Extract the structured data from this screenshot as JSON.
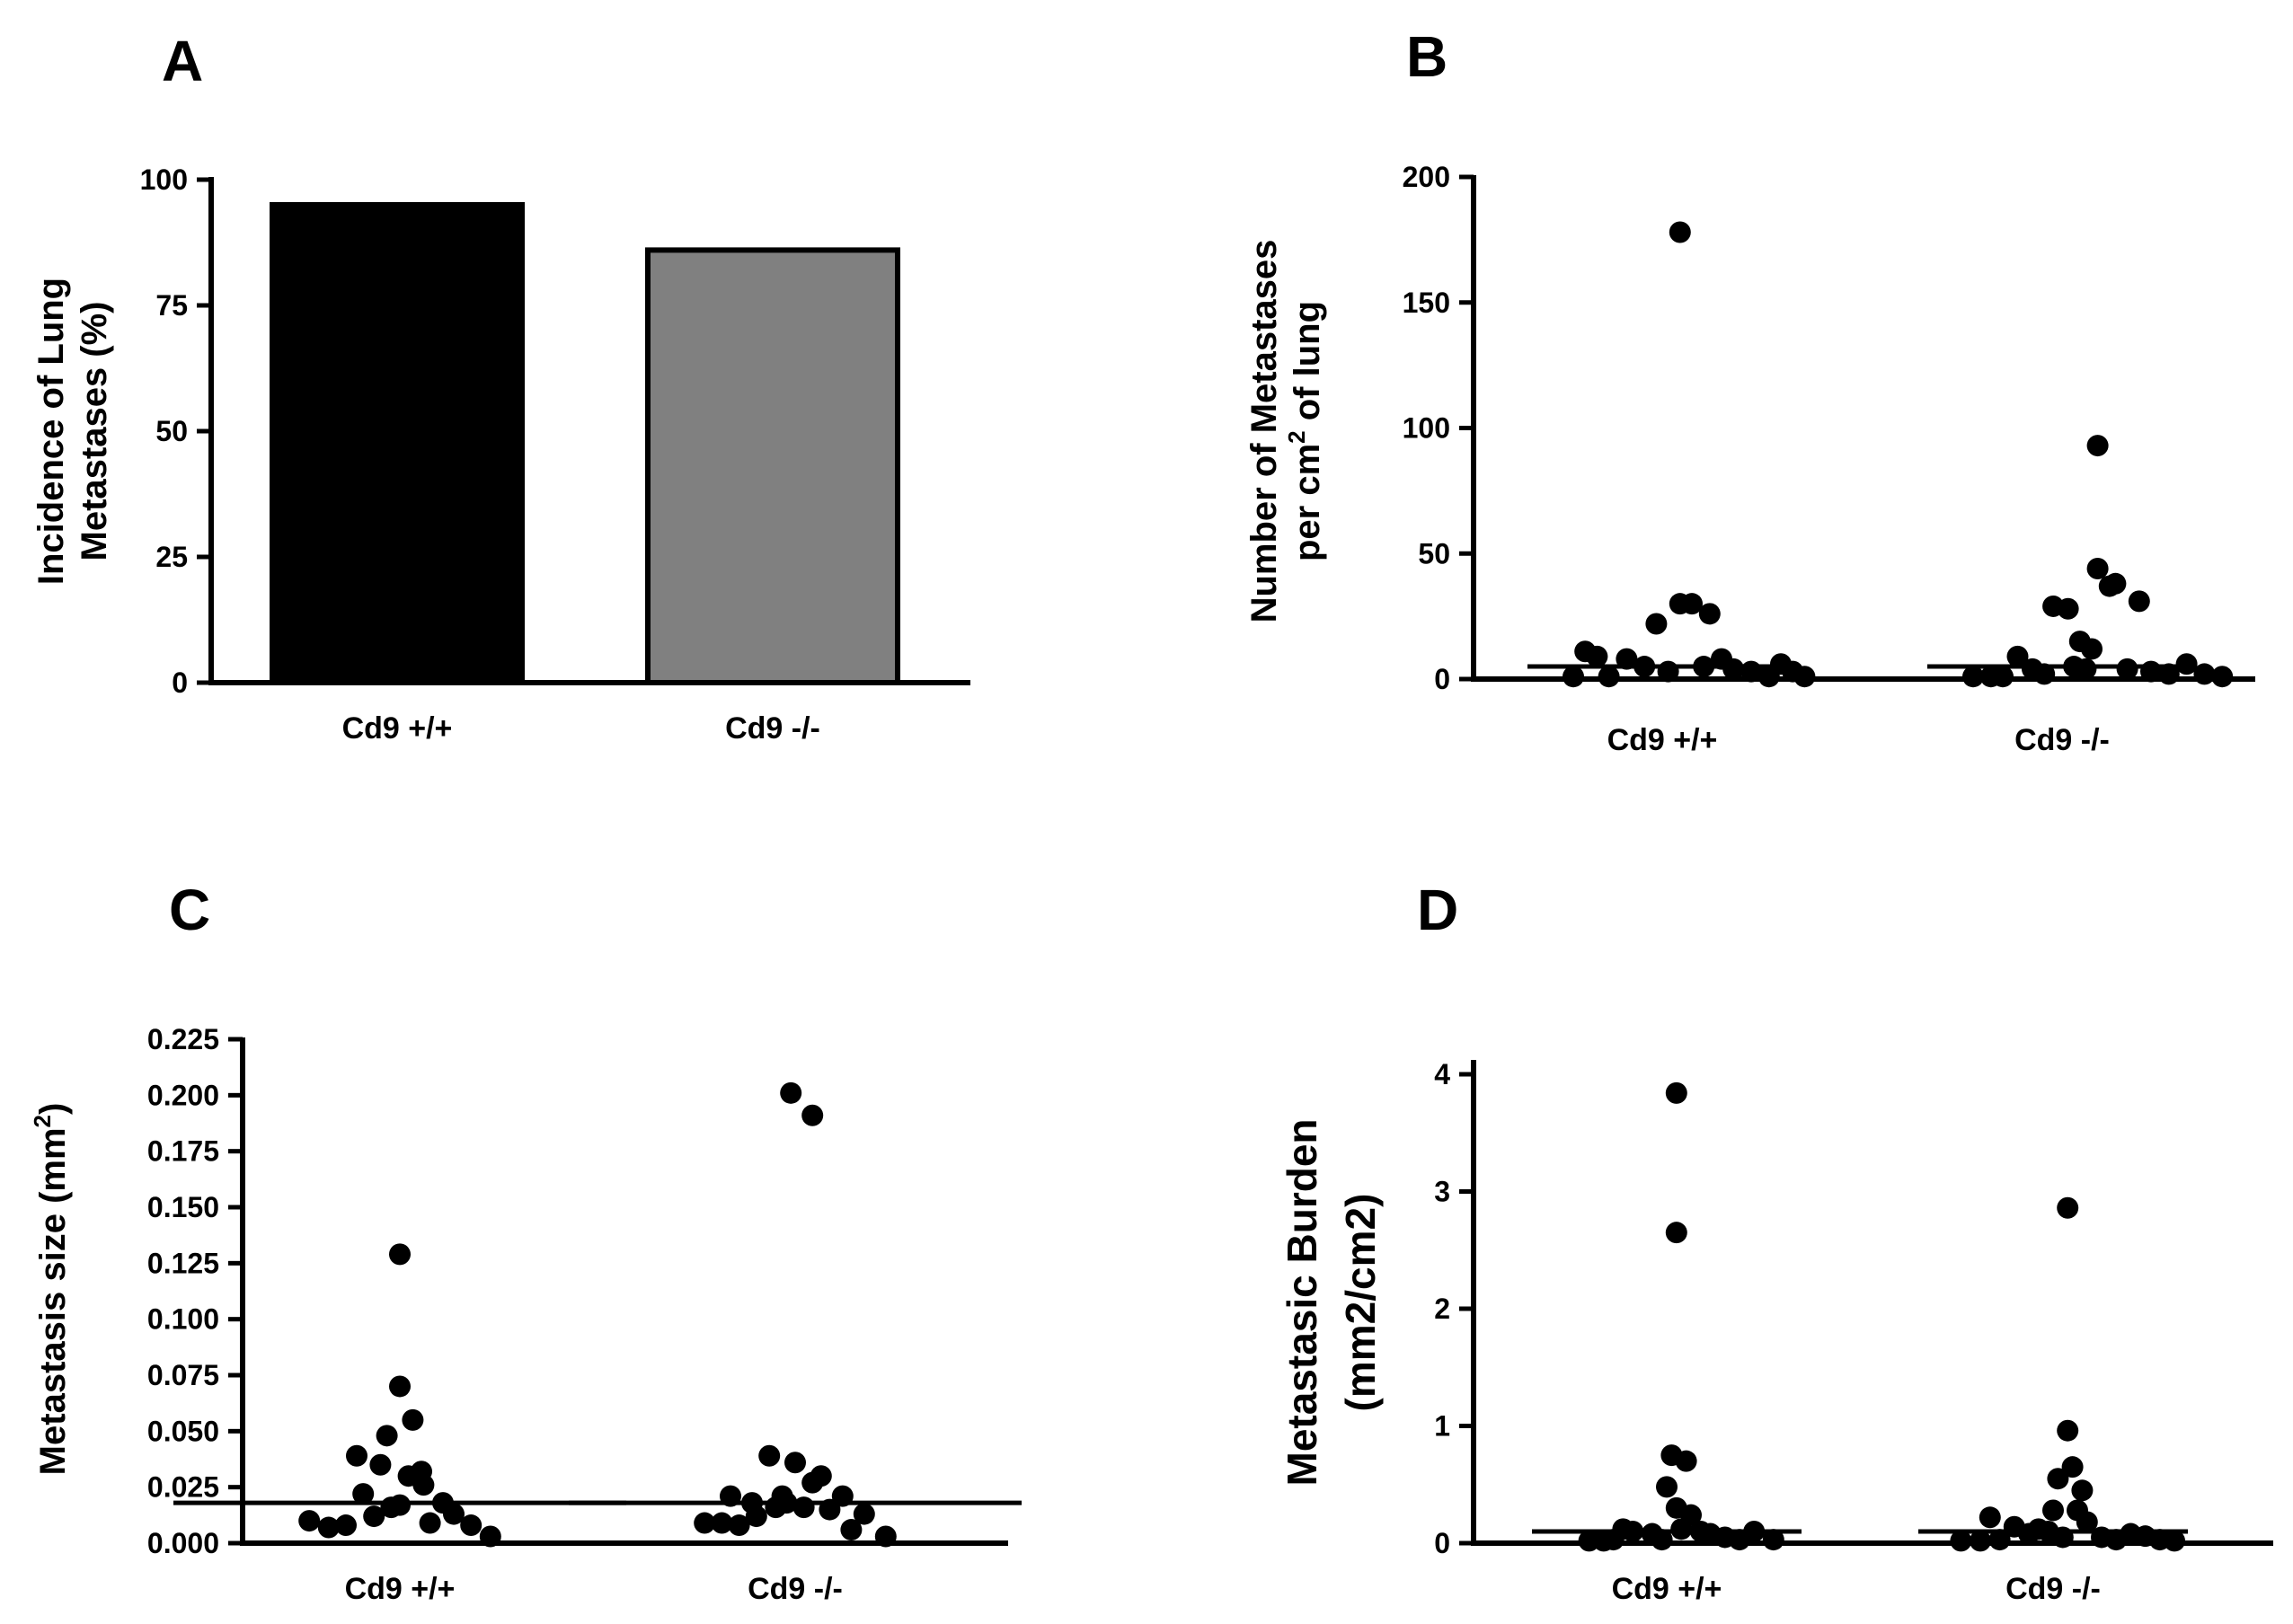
{
  "figure": {
    "panels": [
      "A",
      "B",
      "C",
      "D"
    ]
  },
  "chart_data": [
    {
      "id": "A",
      "type": "bar",
      "title": "",
      "categories": [
        "Cd9 +/+",
        "Cd9 -/-"
      ],
      "values": [
        95,
        86
      ],
      "colors": [
        "#000000",
        "#808080"
      ],
      "ylim": [
        0,
        100
      ],
      "yticks": [
        0,
        25,
        50,
        75,
        100
      ],
      "ylabel_lines": [
        "Incidence of Lung",
        "Metastases (%)"
      ]
    },
    {
      "id": "B",
      "type": "scatter",
      "title": "",
      "categories": [
        "Cd9 +/+",
        "Cd9 -/-"
      ],
      "ylim": [
        0,
        200
      ],
      "yticks": [
        0,
        50,
        100,
        150,
        200
      ],
      "ylabel_line1": "Number of Metastases",
      "ylabel_line2_pre": "per cm",
      "ylabel_line2_sup": "2",
      "ylabel_line2_post": " of lung",
      "medians": [
        5,
        5
      ],
      "series": [
        {
          "name": "Cd9 +/+",
          "points": [
            [
              -0.3,
              1
            ],
            [
              -0.26,
              11
            ],
            [
              -0.22,
              9
            ],
            [
              -0.18,
              1
            ],
            [
              -0.12,
              8
            ],
            [
              -0.06,
              5
            ],
            [
              -0.02,
              22
            ],
            [
              0.02,
              3
            ],
            [
              0.06,
              30
            ],
            [
              0.1,
              30
            ],
            [
              0.06,
              178
            ],
            [
              0.14,
              5
            ],
            [
              0.16,
              26
            ],
            [
              0.2,
              8
            ],
            [
              0.24,
              4
            ],
            [
              0.3,
              3
            ],
            [
              0.36,
              1
            ],
            [
              0.4,
              6
            ],
            [
              0.44,
              3
            ],
            [
              0.48,
              1
            ]
          ]
        },
        {
          "name": "Cd9 -/-",
          "points": [
            [
              -0.3,
              1
            ],
            [
              -0.24,
              1
            ],
            [
              -0.2,
              1
            ],
            [
              -0.15,
              9
            ],
            [
              -0.1,
              4
            ],
            [
              -0.06,
              2
            ],
            [
              -0.03,
              29
            ],
            [
              0.02,
              28
            ],
            [
              0.04,
              5
            ],
            [
              0.06,
              15
            ],
            [
              0.08,
              4
            ],
            [
              0.1,
              12
            ],
            [
              0.12,
              44
            ],
            [
              0.16,
              37
            ],
            [
              0.18,
              38
            ],
            [
              0.22,
              4
            ],
            [
              0.26,
              31
            ],
            [
              0.3,
              3
            ],
            [
              0.36,
              2
            ],
            [
              0.42,
              6
            ],
            [
              0.48,
              2
            ],
            [
              0.54,
              1
            ],
            [
              0.12,
              93
            ]
          ]
        }
      ]
    },
    {
      "id": "C",
      "type": "scatter",
      "title": "",
      "categories": [
        "Cd9 +/+",
        "Cd9 -/-"
      ],
      "ylim": [
        0,
        0.225
      ],
      "yticks": [
        "0.000",
        "0.025",
        "0.050",
        "0.075",
        "0.100",
        "0.125",
        "0.150",
        "0.175",
        "0.200",
        "0.225"
      ],
      "ylabel_pre": "Metastasis size (mm",
      "ylabel_sup": "2",
      "ylabel_post": ")",
      "medians": [
        0.018,
        0.018
      ],
      "series": [
        {
          "name": "Cd9 +/+",
          "points": [
            [
              -0.42,
              0.01
            ],
            [
              -0.33,
              0.007
            ],
            [
              -0.25,
              0.008
            ],
            [
              -0.2,
              0.039
            ],
            [
              -0.17,
              0.022
            ],
            [
              -0.12,
              0.012
            ],
            [
              -0.09,
              0.035
            ],
            [
              -0.06,
              0.048
            ],
            [
              -0.04,
              0.016
            ],
            [
              0.0,
              0.017
            ],
            [
              0.0,
              0.07
            ],
            [
              0.0,
              0.129
            ],
            [
              0.04,
              0.03
            ],
            [
              0.06,
              0.055
            ],
            [
              0.1,
              0.032
            ],
            [
              0.11,
              0.026
            ],
            [
              0.14,
              0.009
            ],
            [
              0.2,
              0.018
            ],
            [
              0.25,
              0.013
            ],
            [
              0.33,
              0.008
            ],
            [
              0.42,
              0.003
            ]
          ]
        },
        {
          "name": "Cd9 -/-",
          "points": [
            [
              -0.42,
              0.009
            ],
            [
              -0.34,
              0.009
            ],
            [
              -0.3,
              0.021
            ],
            [
              -0.26,
              0.008
            ],
            [
              -0.2,
              0.018
            ],
            [
              -0.18,
              0.012
            ],
            [
              -0.12,
              0.039
            ],
            [
              -0.09,
              0.016
            ],
            [
              -0.06,
              0.021
            ],
            [
              -0.04,
              0.018
            ],
            [
              -0.02,
              0.201
            ],
            [
              0.0,
              0.036
            ],
            [
              0.04,
              0.016
            ],
            [
              0.08,
              0.191
            ],
            [
              0.08,
              0.027
            ],
            [
              0.12,
              0.03
            ],
            [
              0.16,
              0.015
            ],
            [
              0.22,
              0.021
            ],
            [
              0.26,
              0.006
            ],
            [
              0.32,
              0.013
            ],
            [
              0.42,
              0.003
            ]
          ]
        }
      ]
    },
    {
      "id": "D",
      "type": "scatter",
      "title": "",
      "categories": [
        "Cd9 +/+",
        "Cd9 -/-"
      ],
      "ylim": [
        0,
        4
      ],
      "yticks": [
        0,
        1,
        2,
        3,
        4
      ],
      "ylabel_line1": "Metastasic Burden",
      "ylabel_line2": "(mm2/cm2)",
      "medians": [
        0.1,
        0.1
      ],
      "series": [
        {
          "name": "Cd9 +/+",
          "points": [
            [
              -0.32,
              0.02
            ],
            [
              -0.26,
              0.02
            ],
            [
              -0.22,
              0.03
            ],
            [
              -0.18,
              0.12
            ],
            [
              -0.14,
              0.1
            ],
            [
              -0.06,
              0.08
            ],
            [
              -0.02,
              0.03
            ],
            [
              0.0,
              0.48
            ],
            [
              0.02,
              0.75
            ],
            [
              0.04,
              0.3
            ],
            [
              0.04,
              2.65
            ],
            [
              0.04,
              3.84
            ],
            [
              0.06,
              0.12
            ],
            [
              0.08,
              0.7
            ],
            [
              0.1,
              0.24
            ],
            [
              0.14,
              0.1
            ],
            [
              0.18,
              0.08
            ],
            [
              0.24,
              0.05
            ],
            [
              0.3,
              0.03
            ],
            [
              0.36,
              0.1
            ],
            [
              0.44,
              0.03
            ]
          ]
        },
        {
          "name": "Cd9 -/-",
          "points": [
            [
              -0.38,
              0.02
            ],
            [
              -0.3,
              0.02
            ],
            [
              -0.26,
              0.22
            ],
            [
              -0.22,
              0.03
            ],
            [
              -0.16,
              0.14
            ],
            [
              -0.1,
              0.08
            ],
            [
              -0.06,
              0.12
            ],
            [
              -0.02,
              0.1
            ],
            [
              0.0,
              0.28
            ],
            [
              0.02,
              0.55
            ],
            [
              0.04,
              0.05
            ],
            [
              0.06,
              0.96
            ],
            [
              0.06,
              2.86
            ],
            [
              0.08,
              0.65
            ],
            [
              0.1,
              0.28
            ],
            [
              0.12,
              0.45
            ],
            [
              0.14,
              0.18
            ],
            [
              0.2,
              0.05
            ],
            [
              0.26,
              0.03
            ],
            [
              0.32,
              0.08
            ],
            [
              0.38,
              0.06
            ],
            [
              0.44,
              0.03
            ],
            [
              0.5,
              0.02
            ]
          ]
        }
      ]
    }
  ]
}
